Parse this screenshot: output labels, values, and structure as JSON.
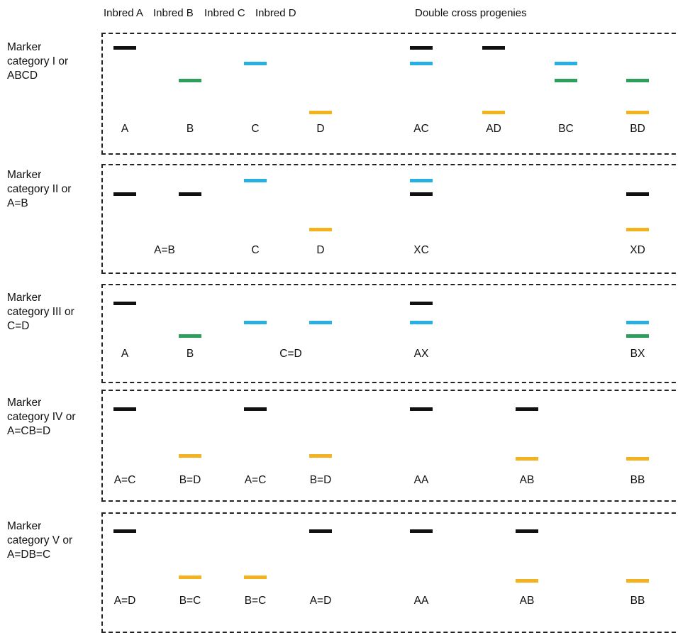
{
  "colors": {
    "black": "#111111",
    "green": "#2e9e5b",
    "blue": "#29b0e3",
    "orange": "#f5b21f",
    "border": "#222222"
  },
  "header": {
    "inbreds": [
      "Inbred A",
      "Inbred B",
      "Inbred C",
      "Inbred D"
    ],
    "progenies_title": "Double cross progenies"
  },
  "categories": [
    {
      "name_lines": [
        "Marker",
        "category I or",
        "ABCD"
      ],
      "bands": [
        {
          "col": "A",
          "lane": 0,
          "color": "black"
        },
        {
          "col": "B",
          "lane": 2,
          "color": "green"
        },
        {
          "col": "C",
          "lane": 1,
          "color": "blue"
        },
        {
          "col": "D",
          "lane": 4,
          "color": "orange"
        },
        {
          "col": "P1",
          "lane": 0,
          "color": "black"
        },
        {
          "col": "P1",
          "lane": 1,
          "color": "blue"
        },
        {
          "col": "P2",
          "lane": 0,
          "color": "black"
        },
        {
          "col": "P2",
          "lane": 4,
          "color": "orange"
        },
        {
          "col": "P3",
          "lane": 1,
          "color": "blue"
        },
        {
          "col": "P3",
          "lane": 2,
          "color": "green"
        },
        {
          "col": "P4",
          "lane": 2,
          "color": "green"
        },
        {
          "col": "P4",
          "lane": 4,
          "color": "orange"
        }
      ],
      "labels": [
        {
          "col": "A",
          "text": "A"
        },
        {
          "col": "B",
          "text": "B"
        },
        {
          "col": "C",
          "text": "C"
        },
        {
          "col": "D",
          "text": "D"
        },
        {
          "col": "P1",
          "text": "AC"
        },
        {
          "col": "P2",
          "text": "AD"
        },
        {
          "col": "P3",
          "text": "BC"
        },
        {
          "col": "P4",
          "text": "BD"
        }
      ]
    },
    {
      "name_lines": [
        "Marker",
        "category II or",
        "A=B"
      ],
      "bands": [
        {
          "col": "A",
          "lane": 1,
          "color": "black"
        },
        {
          "col": "B",
          "lane": 1,
          "color": "black"
        },
        {
          "col": "C",
          "lane": 0,
          "color": "blue"
        },
        {
          "col": "D",
          "lane": 3,
          "color": "orange"
        },
        {
          "col": "P1",
          "lane": 0,
          "color": "blue"
        },
        {
          "col": "P1",
          "lane": 1,
          "color": "black"
        },
        {
          "col": "P4",
          "lane": 1,
          "color": "black"
        },
        {
          "col": "P4",
          "lane": 3,
          "color": "orange"
        }
      ],
      "labels": [
        {
          "col": "AB",
          "text": "A=B"
        },
        {
          "col": "C",
          "text": "C"
        },
        {
          "col": "D",
          "text": "D"
        },
        {
          "col": "P1",
          "text": "XC"
        },
        {
          "col": "P4",
          "text": "XD"
        }
      ]
    },
    {
      "name_lines": [
        "Marker",
        "category III or",
        "C=D"
      ],
      "bands": [
        {
          "col": "A",
          "lane": 0,
          "color": "black"
        },
        {
          "col": "B",
          "lane": 2,
          "color": "green"
        },
        {
          "col": "C",
          "lane": 1,
          "color": "blue"
        },
        {
          "col": "D",
          "lane": 1,
          "color": "blue"
        },
        {
          "col": "P1",
          "lane": 0,
          "color": "black"
        },
        {
          "col": "P1",
          "lane": 1,
          "color": "blue"
        },
        {
          "col": "P4",
          "lane": 1,
          "color": "blue"
        },
        {
          "col": "P4",
          "lane": 2,
          "color": "green"
        }
      ],
      "labels": [
        {
          "col": "A",
          "text": "A"
        },
        {
          "col": "B",
          "text": "B"
        },
        {
          "col": "CD",
          "text": "C=D"
        },
        {
          "col": "P1",
          "text": "AX"
        },
        {
          "col": "P4",
          "text": "BX"
        }
      ]
    },
    {
      "name_lines": [
        "Marker",
        "category IV or",
        "A=CB=D"
      ],
      "bands": [
        {
          "col": "A",
          "lane": 0,
          "color": "black"
        },
        {
          "col": "B",
          "lane": 3,
          "color": "orange"
        },
        {
          "col": "C",
          "lane": 0,
          "color": "black"
        },
        {
          "col": "D",
          "lane": 3,
          "color": "orange"
        },
        {
          "col": "P1",
          "lane": 0,
          "color": "black"
        },
        {
          "col": "P2b",
          "lane": 0,
          "color": "black"
        },
        {
          "col": "P2b",
          "lane": 4,
          "color": "orange"
        },
        {
          "col": "P4",
          "lane": 4,
          "color": "orange"
        }
      ],
      "labels": [
        {
          "col": "A",
          "text": "A=C"
        },
        {
          "col": "B",
          "text": "B=D"
        },
        {
          "col": "C",
          "text": "A=C"
        },
        {
          "col": "D",
          "text": "B=D"
        },
        {
          "col": "P1",
          "text": "AA"
        },
        {
          "col": "P2b",
          "text": "AB"
        },
        {
          "col": "P4",
          "text": "BB"
        }
      ]
    },
    {
      "name_lines": [
        "Marker",
        "category V or",
        "A=DB=C"
      ],
      "bands": [
        {
          "col": "A",
          "lane": 0,
          "color": "black"
        },
        {
          "col": "B",
          "lane": 3,
          "color": "orange"
        },
        {
          "col": "C",
          "lane": 3,
          "color": "orange"
        },
        {
          "col": "D",
          "lane": 0,
          "color": "black"
        },
        {
          "col": "P1",
          "lane": 0,
          "color": "black"
        },
        {
          "col": "P2b",
          "lane": 0,
          "color": "black"
        },
        {
          "col": "P2b",
          "lane": 4,
          "color": "orange"
        },
        {
          "col": "P4",
          "lane": 4,
          "color": "orange"
        }
      ],
      "labels": [
        {
          "col": "A",
          "text": "A=D"
        },
        {
          "col": "B",
          "text": "B=C"
        },
        {
          "col": "C",
          "text": "B=C"
        },
        {
          "col": "D",
          "text": "A=D"
        },
        {
          "col": "P1",
          "text": "AA"
        },
        {
          "col": "P2b",
          "text": "AB"
        },
        {
          "col": "P4",
          "text": "BB"
        }
      ]
    }
  ]
}
